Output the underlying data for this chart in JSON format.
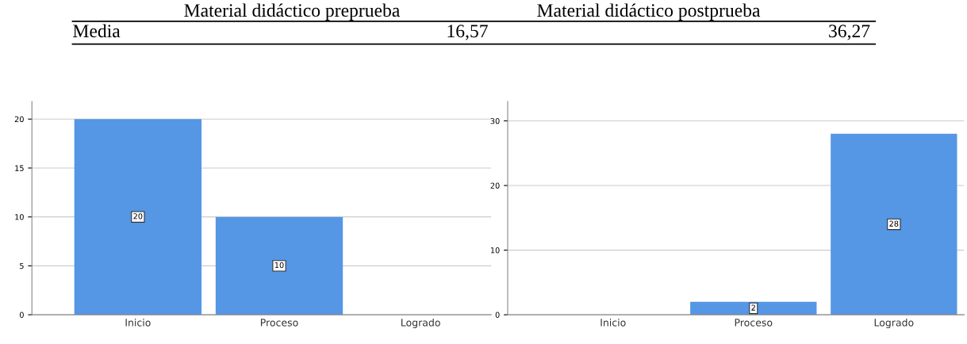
{
  "chart_data": [
    {
      "type": "other",
      "annotations": [
        "Material didáctico preprueba",
        "Material didáctico postprueba",
        "Media",
        "16,57",
        "36,27"
      ]
    },
    {
      "type": "bar",
      "categories": [
        "Inicio",
        "Proceso",
        "Logrado"
      ],
      "values": [
        20,
        10,
        0
      ],
      "value_labels": [
        "20",
        "10",
        null
      ],
      "color": "#5596e5",
      "ylim": [
        0,
        21.8
      ],
      "yticks": [
        0,
        5,
        10,
        15,
        20
      ],
      "grid": "y"
    },
    {
      "type": "bar",
      "categories": [
        "Inicio",
        "Proceso",
        "Logrado"
      ],
      "values": [
        0,
        2,
        28
      ],
      "value_labels": [
        null,
        "2",
        "28"
      ],
      "color": "#5596e5",
      "ylim": [
        0,
        33
      ],
      "yticks": [
        0,
        10,
        20,
        30
      ],
      "grid": "y"
    }
  ]
}
